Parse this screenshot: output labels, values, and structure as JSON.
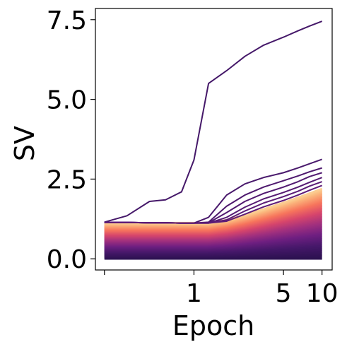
{
  "chart_data": {
    "type": "line",
    "title": "",
    "xlabel": "Epoch",
    "ylabel": "SV",
    "x_scale": "log",
    "x_ticks": [
      {
        "value": 0.2,
        "label": ""
      },
      {
        "value": 1,
        "label": "1"
      },
      {
        "value": 5,
        "label": "5"
      },
      {
        "value": 10,
        "label": "10"
      }
    ],
    "y_ticks": [
      {
        "value": 0.0,
        "label": "0.0"
      },
      {
        "value": 2.5,
        "label": "2.5"
      },
      {
        "value": 5.0,
        "label": "5.0"
      },
      {
        "value": 7.5,
        "label": "7.5"
      }
    ],
    "xlim": [
      0.17,
      12
    ],
    "ylim": [
      -0.35,
      7.85
    ],
    "grid": false,
    "legend": "none",
    "colormap": [
      "#fcfdbf",
      "#fbb97e",
      "#f7755c",
      "#d6456c",
      "#a1307e",
      "#6f1f81",
      "#46186a",
      "#2c1150"
    ],
    "x": [
      0.2,
      0.3,
      0.45,
      0.6,
      0.8,
      1.0,
      1.3,
      1.8,
      2.5,
      3.5,
      5.0,
      6.5,
      8.0,
      10.0
    ],
    "series": [
      {
        "values": [
          1.15,
          1.35,
          1.8,
          1.85,
          2.1,
          3.1,
          5.5,
          5.9,
          6.35,
          6.7,
          6.95,
          7.15,
          7.3,
          7.45
        ]
      },
      {
        "values": [
          1.14,
          1.14,
          1.13,
          1.13,
          1.12,
          1.12,
          1.3,
          2.0,
          2.35,
          2.55,
          2.7,
          2.85,
          2.98,
          3.12
        ]
      },
      {
        "values": [
          1.14,
          1.14,
          1.13,
          1.13,
          1.12,
          1.12,
          1.15,
          1.65,
          2.0,
          2.25,
          2.45,
          2.6,
          2.73,
          2.85
        ]
      },
      {
        "values": [
          1.14,
          1.14,
          1.13,
          1.13,
          1.12,
          1.12,
          1.13,
          1.45,
          1.8,
          2.05,
          2.25,
          2.42,
          2.58,
          2.7
        ]
      },
      {
        "values": [
          1.14,
          1.14,
          1.13,
          1.13,
          1.12,
          1.12,
          1.12,
          1.3,
          1.62,
          1.88,
          2.08,
          2.25,
          2.4,
          2.55
        ]
      },
      {
        "values": [
          1.14,
          1.14,
          1.13,
          1.13,
          1.12,
          1.12,
          1.12,
          1.22,
          1.5,
          1.75,
          1.95,
          2.12,
          2.28,
          2.42
        ]
      },
      {
        "values": [
          1.14,
          1.14,
          1.13,
          1.13,
          1.12,
          1.12,
          1.12,
          1.18,
          1.4,
          1.63,
          1.83,
          2.0,
          2.15,
          2.3
        ]
      }
    ],
    "band": {
      "top_start": 1.13,
      "top_end": 2.2,
      "bottom": 0.0,
      "line_count": 70
    }
  }
}
